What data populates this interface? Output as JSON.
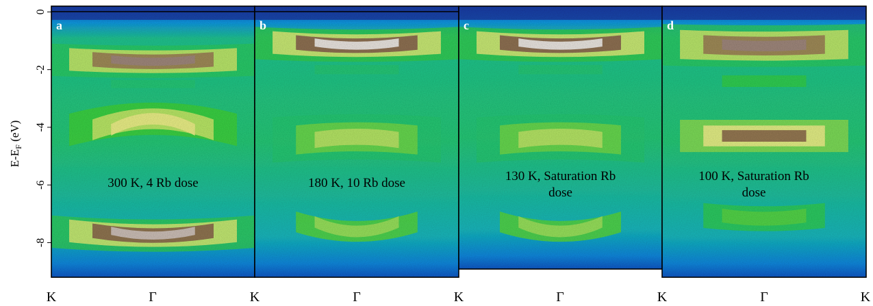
{
  "chart_data": {
    "type": "heatmap",
    "ylabel": "E-E",
    "ylabel_sub": "F",
    "ylabel_unit": " (eV)",
    "y_ticks": [
      {
        "value": 0,
        "label": "0"
      },
      {
        "value": -2,
        "label": "-2"
      },
      {
        "value": -4,
        "label": "-4"
      },
      {
        "value": -6,
        "label": "-6"
      },
      {
        "value": -8,
        "label": "-8"
      }
    ],
    "ylim": [
      -9.2,
      0.2
    ],
    "x_tick_labels": [
      "K",
      "Γ",
      "K",
      "Γ",
      "K",
      "Γ",
      "K",
      "Γ",
      "K"
    ],
    "colormap": [
      "#1d2f92",
      "#1463d2",
      "#18a6e4",
      "#1cc1a0",
      "#39cf3c",
      "#c6e86a",
      "#f2ef8e",
      "#8c6a4e",
      "#7e5b51",
      "#f3f1ee"
    ],
    "panels": [
      {
        "letter": "a",
        "annotation": [
          "300 K, 4 Rb dose"
        ],
        "bands": [
          {
            "energy": -1.6,
            "intensity": 0.95,
            "curvature": 0.15,
            "width": 0.35
          },
          {
            "energy": -2.5,
            "intensity": 0.45,
            "curvature": 0.0,
            "width": 0.35
          },
          {
            "energy": -4.3,
            "intensity": 0.75,
            "curvature": -0.7,
            "width": 0.5
          },
          {
            "energy": -7.5,
            "intensity": 0.98,
            "curvature": 0.3,
            "width": 0.35
          }
        ]
      },
      {
        "letter": "b",
        "annotation": [
          "180 K, 10 Rb dose"
        ],
        "bands": [
          {
            "energy": -1.0,
            "intensity": 1.0,
            "curvature": 0.2,
            "width": 0.35
          },
          {
            "energy": -2.0,
            "intensity": 0.45,
            "curvature": 0.0,
            "width": 0.4
          },
          {
            "energy": -4.5,
            "intensity": 0.65,
            "curvature": -0.2,
            "width": 0.7
          },
          {
            "energy": -7.1,
            "intensity": 0.62,
            "curvature": 0.6,
            "width": 0.5
          }
        ]
      },
      {
        "letter": "c",
        "annotation": [
          "130 K, Saturation Rb",
          "dose"
        ],
        "bands": [
          {
            "energy": -1.0,
            "intensity": 1.0,
            "curvature": 0.2,
            "width": 0.35
          },
          {
            "energy": -2.0,
            "intensity": 0.45,
            "curvature": 0.0,
            "width": 0.4
          },
          {
            "energy": -4.5,
            "intensity": 0.65,
            "curvature": -0.2,
            "width": 0.7
          },
          {
            "energy": -7.1,
            "intensity": 0.62,
            "curvature": 0.6,
            "width": 0.5
          }
        ]
      },
      {
        "letter": "d",
        "annotation": [
          "100 K, Saturation Rb",
          "dose"
        ],
        "bands": [
          {
            "energy": -1.1,
            "intensity": 0.95,
            "curvature": 0.1,
            "width": 0.45
          },
          {
            "energy": -2.4,
            "intensity": 0.5,
            "curvature": 0.0,
            "width": 0.5
          },
          {
            "energy": -4.3,
            "intensity": 0.85,
            "curvature": 0.0,
            "width": 0.5
          },
          {
            "energy": -7.0,
            "intensity": 0.55,
            "curvature": 0.2,
            "width": 0.6
          }
        ]
      }
    ]
  }
}
